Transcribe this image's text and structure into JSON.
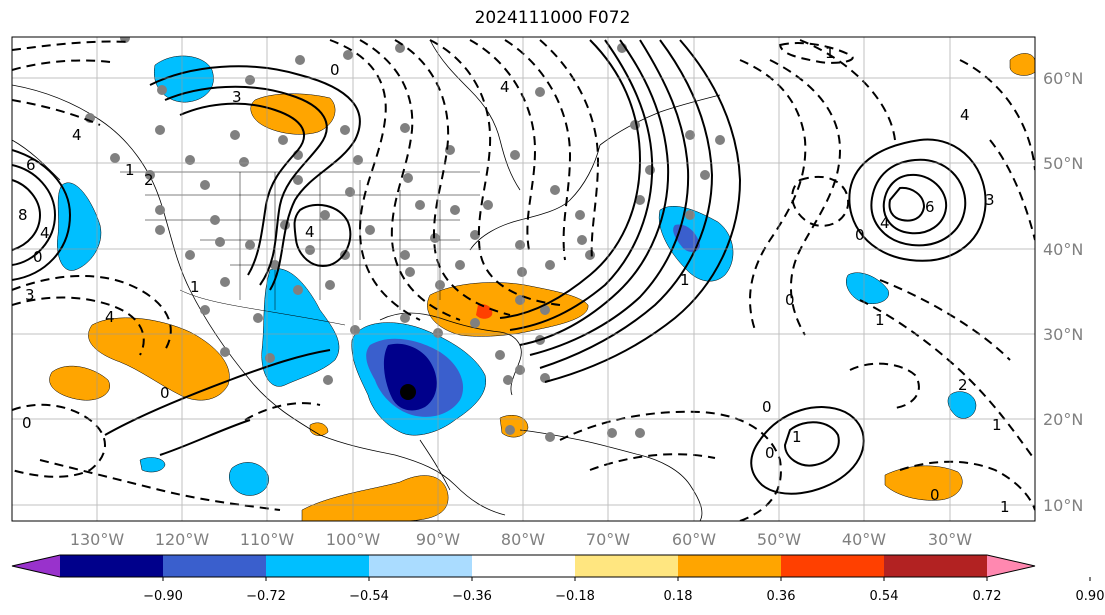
{
  "title": "2024111000 F072",
  "lon_labels": [
    "130°W",
    "120°W",
    "110°W",
    "100°W",
    "90°W",
    "80°W",
    "70°W",
    "60°W",
    "50°W",
    "40°W",
    "30°W"
  ],
  "lat_labels": [
    "60°N",
    "50°N",
    "40°N",
    "30°N",
    "20°N",
    "10°N"
  ],
  "colorbar": {
    "labels": [
      "−0.90",
      "−0.72",
      "−0.54",
      "−0.36",
      "−0.18",
      "0.18",
      "0.36",
      "0.54",
      "0.72",
      "0.90"
    ],
    "colors": [
      "#9932cc",
      "#00008b",
      "#3a5fcd",
      "#00bfff",
      "#aadcff",
      "#ffffff",
      "#ffe680",
      "#ffa500",
      "#ff4000",
      "#b22222",
      "#ff88b0"
    ]
  },
  "contour_labels": [
    "1",
    "4",
    "6",
    "8",
    "4",
    "0",
    "3",
    "3",
    "0",
    "4",
    "1",
    "2",
    "4",
    "1",
    "0",
    "0",
    "6",
    "4",
    "0",
    "0",
    "1",
    "0",
    "1",
    "0",
    "1",
    "2",
    "1",
    "1",
    "0",
    "4",
    "4",
    "3"
  ]
}
